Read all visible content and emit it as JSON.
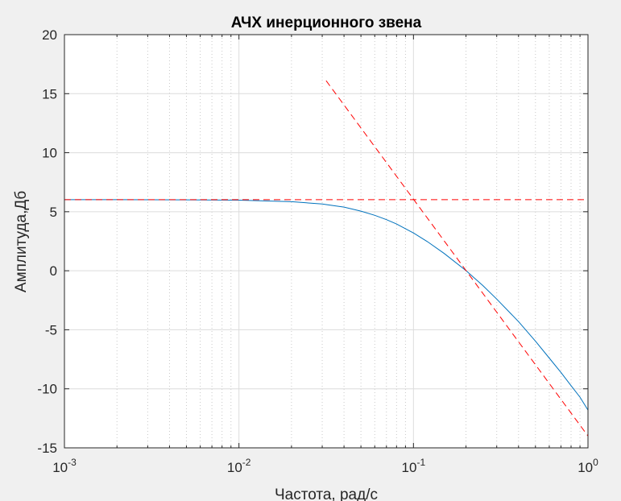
{
  "chart_data": {
    "type": "line",
    "title": "АЧХ инерционного звена",
    "xlabel": "Частота, рад/с",
    "ylabel": "Амплитуда,Дб",
    "xscale": "log",
    "xlim": [
      0.001,
      1
    ],
    "ylim": [
      -15,
      20
    ],
    "grid": true,
    "minor_grid_x": true,
    "legend": "none",
    "yticks": [
      20,
      15,
      10,
      5,
      0,
      -5,
      -10,
      -15
    ],
    "ytick_labels": [
      "20",
      "15",
      "10",
      "5",
      "0",
      "-5",
      "-10",
      "-15"
    ],
    "xticks": [
      0.001,
      0.01,
      0.1,
      1
    ],
    "xtick_labels": [
      {
        "base": "10",
        "exp": "-3"
      },
      {
        "base": "10",
        "exp": "-2"
      },
      {
        "base": "10",
        "exp": "-1"
      },
      {
        "base": "10",
        "exp": "0"
      }
    ],
    "series": [
      {
        "color": "#0072bd",
        "style": "solid",
        "x": [
          0.001,
          0.002,
          0.005,
          0.01,
          0.02,
          0.03,
          0.04,
          0.05,
          0.06,
          0.07,
          0.08,
          0.1,
          0.12,
          0.15,
          0.2,
          0.25,
          0.3,
          0.4,
          0.5,
          0.6,
          0.7,
          0.8,
          0.9,
          1.0
        ],
        "y": [
          6.02,
          6.02,
          6.01,
          5.98,
          5.85,
          5.65,
          5.39,
          5.05,
          4.7,
          4.33,
          3.96,
          3.2,
          2.47,
          1.46,
          0.01,
          -1.26,
          -2.4,
          -4.31,
          -5.97,
          -7.39,
          -8.61,
          -9.73,
          -10.71,
          -11.8
        ]
      },
      {
        "color": "#ff0000",
        "style": "dashed",
        "x": [
          0.001,
          1.0
        ],
        "y": [
          6.02,
          6.02
        ]
      },
      {
        "color": "#ff0000",
        "style": "dashed",
        "x": [
          0.0316,
          1.0
        ],
        "y": [
          16.1,
          -14.0
        ]
      }
    ]
  }
}
